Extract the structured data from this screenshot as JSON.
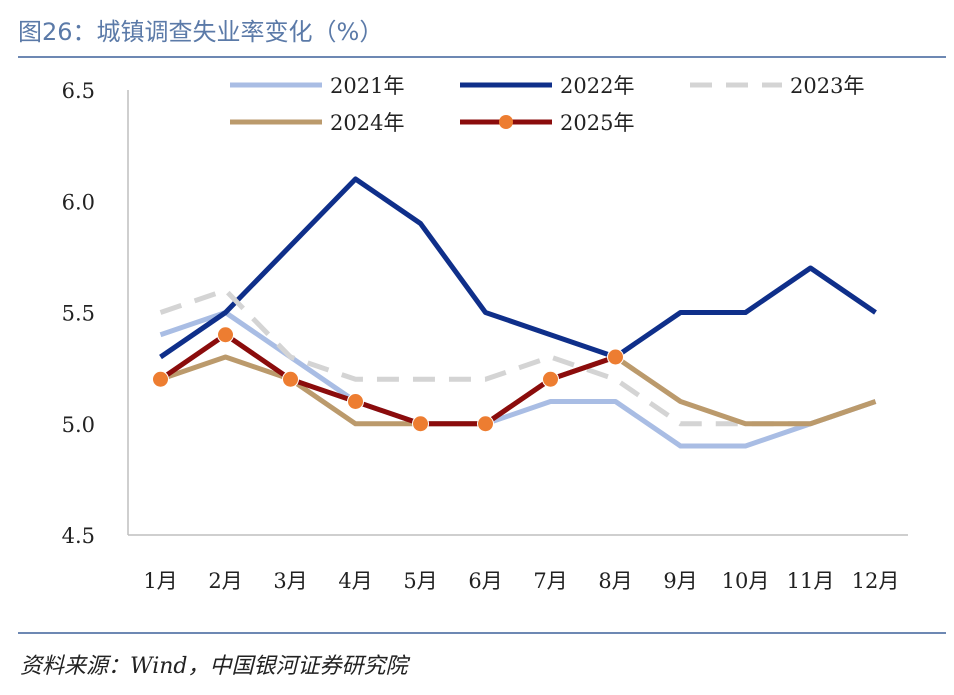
{
  "title": "图26：城镇调查失业率变化（%）",
  "source": "资料来源：Wind，中国银河证券研究院",
  "chart_data": {
    "type": "line",
    "categories": [
      "1月",
      "2月",
      "3月",
      "4月",
      "5月",
      "6月",
      "7月",
      "8月",
      "9月",
      "10月",
      "11月",
      "12月"
    ],
    "ylim": [
      4.5,
      6.5
    ],
    "yticks": [
      4.5,
      5.0,
      5.5,
      6.0,
      6.5
    ],
    "ytick_labels": [
      "4.5",
      "5.0",
      "5.5",
      "6.0",
      "6.5"
    ],
    "series": [
      {
        "name": "2021年",
        "color": "#a9bde4",
        "style": "solid",
        "markers": false,
        "values": [
          5.4,
          5.5,
          5.3,
          5.1,
          5.0,
          5.0,
          5.1,
          5.1,
          4.9,
          4.9,
          5.0,
          5.1
        ]
      },
      {
        "name": "2022年",
        "color": "#0f2f8a",
        "style": "solid",
        "markers": false,
        "values": [
          5.3,
          5.5,
          5.8,
          6.1,
          5.9,
          5.5,
          5.4,
          5.3,
          5.5,
          5.5,
          5.7,
          5.5
        ]
      },
      {
        "name": "2023年",
        "color": "#d4d4d4",
        "style": "dashed",
        "markers": false,
        "values": [
          5.5,
          5.6,
          5.3,
          5.2,
          5.2,
          5.2,
          5.3,
          5.2,
          5.0,
          5.0,
          5.0,
          5.1
        ]
      },
      {
        "name": "2024年",
        "color": "#bb9a6c",
        "style": "solid",
        "markers": false,
        "values": [
          5.2,
          5.3,
          5.2,
          5.0,
          5.0,
          5.0,
          5.2,
          5.3,
          5.1,
          5.0,
          5.0,
          5.1
        ]
      },
      {
        "name": "2025年",
        "color": "#8b0c0c",
        "style": "solid",
        "markers": true,
        "marker_color": "#ed7d31",
        "values": [
          5.2,
          5.4,
          5.2,
          5.1,
          5.0,
          5.0,
          5.2,
          5.3,
          null,
          null,
          null,
          null
        ]
      }
    ],
    "legend_position": "top",
    "grid": false
  }
}
